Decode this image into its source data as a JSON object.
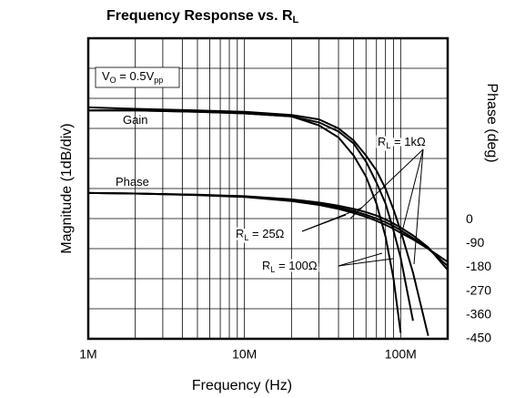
{
  "chart_data": {
    "type": "line",
    "title_parts": [
      {
        "text": "Frequency Response vs. R"
      },
      {
        "text": "L",
        "sub": true
      }
    ],
    "xlabel": "Frequency (Hz)",
    "ylabel": "Magnitude (1dB/div)",
    "y2label": "Phase (deg)",
    "log_x": true,
    "grid": true,
    "xlim": [
      1000000,
      200000000
    ],
    "xticks": [
      {
        "value": 1000000,
        "label": "1M"
      },
      {
        "value": 10000000,
        "label": "10M"
      },
      {
        "value": 100000000,
        "label": "100M"
      }
    ],
    "x_minor_grid": [
      2000000,
      3000000,
      4000000,
      5000000,
      6000000,
      7000000,
      8000000,
      9000000,
      20000000,
      30000000,
      40000000,
      50000000,
      60000000,
      70000000,
      80000000,
      90000000
    ],
    "ylim": [
      -10,
      0
    ],
    "yticks": [
      -10,
      -9,
      -8,
      -7,
      -6,
      -5,
      -4,
      -3,
      -2,
      -1,
      0
    ],
    "y2lim": [
      -450,
      684
    ],
    "y2ticks": [
      0,
      -90,
      -180,
      -270,
      -360,
      -450
    ],
    "x": [
      1000000,
      2000000,
      5000000,
      10000000,
      20000000,
      30000000,
      40000000,
      50000000,
      60000000,
      70000000,
      80000000,
      90000000,
      100000000,
      120000000,
      150000000,
      200000000
    ],
    "series": [
      {
        "color": "#000000",
        "values": [
          -2.4,
          -2.4,
          -2.45,
          -2.5,
          -2.6,
          -2.9,
          -3.3,
          -3.9,
          -4.6,
          -5.5,
          -6.6,
          -8,
          -9.8,
          null,
          null,
          null
        ]
      },
      {
        "color": "#000000",
        "values": [
          -2.4,
          -2.4,
          -2.45,
          -2.5,
          -2.6,
          -2.8,
          -3.1,
          -3.5,
          -4.1,
          -4.8,
          -5.5,
          -6.4,
          -7.3,
          -9.4,
          null,
          null
        ]
      },
      {
        "color": "#000000",
        "values": [
          -2.3,
          -2.35,
          -2.4,
          -2.45,
          -2.55,
          -2.7,
          -3,
          -3.4,
          -3.9,
          -4.4,
          -5,
          -5.7,
          -6.4,
          -7.8,
          -9.9,
          null
        ]
      },
      {
        "color": "#000000",
        "axis": "y2",
        "values": [
          100,
          98,
          92,
          85,
          70,
          55,
          40,
          25,
          10,
          -5,
          -20,
          -35,
          -50,
          -75,
          -110,
          -160
        ]
      },
      {
        "color": "#000000",
        "axis": "y2",
        "values": [
          100,
          98,
          93,
          86,
          73,
          60,
          46,
          32,
          18,
          4,
          -10,
          -25,
          -40,
          -70,
          -110,
          -175
        ]
      },
      {
        "color": "#000000",
        "axis": "y2",
        "values": [
          100,
          98,
          94,
          88,
          76,
          64,
          52,
          40,
          28,
          15,
          0,
          -15,
          -30,
          -60,
          -105,
          -190
        ]
      }
    ],
    "annotations": [
      {
        "parts": [
          {
            "text": "V"
          },
          {
            "text": "O",
            "sub": true
          },
          {
            "text": " = 0.5V"
          },
          {
            "text": "pp",
            "sub": true
          }
        ]
      },
      {
        "parts": [
          {
            "text": "Gain"
          }
        ]
      },
      {
        "parts": [
          {
            "text": "Phase"
          }
        ]
      },
      {
        "parts": [
          {
            "text": "R"
          },
          {
            "text": "L",
            "sub": true
          },
          {
            "text": " = 1kΩ"
          }
        ]
      },
      {
        "parts": [
          {
            "text": "R"
          },
          {
            "text": "L",
            "sub": true
          },
          {
            "text": " = 25Ω"
          }
        ]
      },
      {
        "parts": [
          {
            "text": "R"
          },
          {
            "text": "L",
            "sub": true
          },
          {
            "text": " = 100Ω"
          }
        ]
      }
    ]
  }
}
